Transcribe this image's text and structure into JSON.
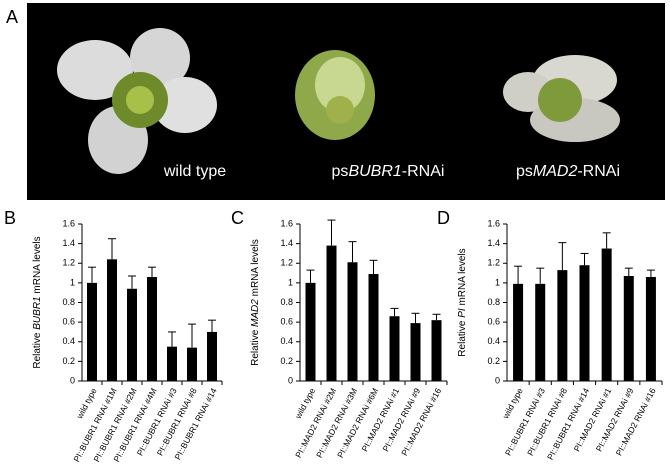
{
  "panel_labels": [
    "A",
    "B",
    "C",
    "D"
  ],
  "photo_labels": [
    [
      "wild type"
    ],
    [
      "ps",
      "BUBR1",
      "-RNAi"
    ],
    [
      "ps",
      "MAD2",
      "-RNAi"
    ]
  ],
  "chart_data": [
    {
      "type": "bar",
      "ylabel": [
        "Relative ",
        "BUBR1",
        " mRNA levels"
      ],
      "categories": [
        "wild type",
        "PI::BUBR1 RNAi #1M",
        "PI::BUBR1 RNAi #2M",
        "PI::BUBR1 RNAi #4M",
        "PI::BUBR1 RNAi #3",
        "PI::BUBR1 RNAi #8",
        "PI::BUBR1 RNAi #14"
      ],
      "values": [
        1.0,
        1.24,
        0.94,
        1.06,
        0.35,
        0.34,
        0.5
      ],
      "errors": [
        0.16,
        0.21,
        0.13,
        0.1,
        0.15,
        0.24,
        0.12
      ],
      "color": "#000000",
      "ylim": [
        0,
        1.6
      ],
      "yticks": [
        0,
        0.2,
        0.4,
        0.6,
        0.8,
        1,
        1.2,
        1.4,
        1.6
      ]
    },
    {
      "type": "bar",
      "ylabel": [
        "Relative ",
        "MAD2",
        " mRNA levels"
      ],
      "categories": [
        "wild type",
        "PI::MAD2 RNAi #2M",
        "PI::MAD2 RNAi #3M",
        "PI::MAD2 RNAi #6M",
        "PI::MAD2 RNAi #1",
        "PI::MAD2 RNAi #9",
        "PI::MAD2 RNAi #16"
      ],
      "values": [
        1.0,
        1.38,
        1.21,
        1.09,
        0.66,
        0.59,
        0.62
      ],
      "errors": [
        0.13,
        0.26,
        0.21,
        0.14,
        0.08,
        0.1,
        0.06
      ],
      "color": "#000000",
      "ylim": [
        0,
        1.6
      ],
      "yticks": [
        0,
        0.2,
        0.4,
        0.6,
        0.8,
        1,
        1.2,
        1.4,
        1.6
      ]
    },
    {
      "type": "bar",
      "ylabel": [
        "Relative ",
        "PI",
        " mRNA levels"
      ],
      "categories": [
        "wild type",
        "PI::BUBR1 RNAi #3",
        "PI::BUBR1 RNAi #8",
        "PI::BUBR1 RNAi #14",
        "PI::MAD2 RNAi #1",
        "PI::MAD2 RNAi #9",
        "PI::MAD2 RNAi #16"
      ],
      "values": [
        0.99,
        0.99,
        1.13,
        1.18,
        1.35,
        1.07,
        1.06
      ],
      "errors": [
        0.18,
        0.16,
        0.28,
        0.12,
        0.16,
        0.08,
        0.07
      ],
      "color": "#000000",
      "ylim": [
        0,
        1.6
      ],
      "yticks": [
        0,
        0.2,
        0.4,
        0.6,
        0.8,
        1,
        1.2,
        1.4,
        1.6
      ]
    }
  ]
}
